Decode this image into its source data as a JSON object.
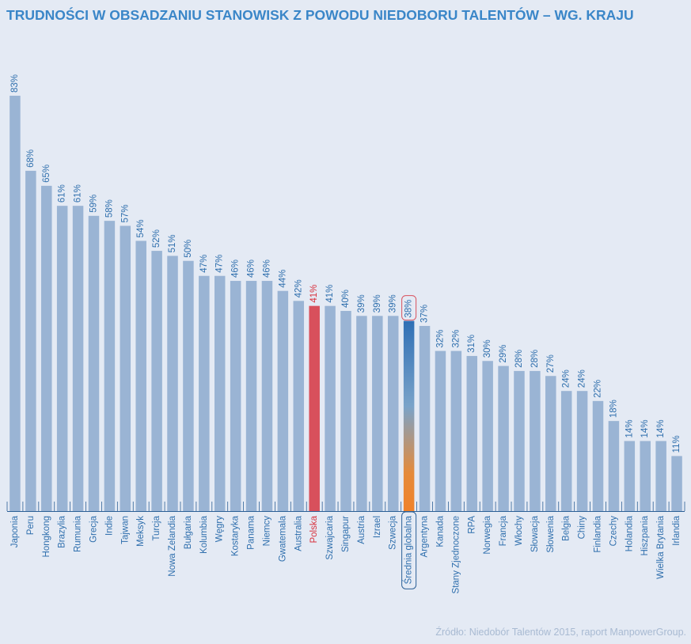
{
  "colors": {
    "bar": "#9ab4d4",
    "highlight": "#d8505c",
    "text": "#2f6fad",
    "highlight_text": "#d8303c",
    "avg_top": "#2f6fb5",
    "avg_bottom": "#f0822a",
    "axis": "#2b5f96"
  },
  "chart_data": {
    "type": "bar",
    "title": "TRUDNOŚCI W OBSADZANIU STANOWISK Z POWODU NIEDOBORU TALENTÓW – WG. KRAJU",
    "source": "Źródło: Niedobór Talentów 2015, raport ManpowerGroup.",
    "categories": [
      "Japonia",
      "Peru",
      "Hongkong",
      "Brazylia",
      "Rumunia",
      "Grecja",
      "Indie",
      "Tajwan",
      "Meksyk",
      "Turcja",
      "Nowa Zelandia",
      "Bułgaria",
      "Kolumbia",
      "Węgry",
      "Kostaryka",
      "Panama",
      "Niemcy",
      "Gwatemala",
      "Australia",
      "Polska",
      "Szwajcaria",
      "Singapur",
      "Austria",
      "Izrael",
      "Szwecja",
      "Średnia globalna",
      "Argentyna",
      "Kanada",
      "Stany Zjednoczone",
      "RPA",
      "Norwegia",
      "Francja",
      "Włochy",
      "Słowacja",
      "Słowenia",
      "Belgia",
      "Chiny",
      "Finlandia",
      "Czechy",
      "Holandia",
      "Hiszpania",
      "Wielka Brytania",
      "Irlandia"
    ],
    "values": [
      83,
      68,
      65,
      61,
      61,
      59,
      58,
      57,
      54,
      52,
      51,
      50,
      47,
      47,
      46,
      46,
      46,
      44,
      42,
      41,
      41,
      40,
      39,
      39,
      39,
      38,
      37,
      32,
      32,
      31,
      30,
      29,
      28,
      28,
      27,
      24,
      24,
      22,
      18,
      14,
      14,
      14,
      11
    ],
    "value_labels": [
      "83%",
      "68%",
      "65%",
      "61%",
      "61%",
      "59%",
      "58%",
      "57%",
      "54%",
      "52%",
      "51%",
      "50%",
      "47%",
      "47%",
      "46%",
      "46%",
      "46%",
      "44%",
      "42%",
      "41%",
      "41%",
      "40%",
      "39%",
      "39%",
      "39%",
      "38%",
      "37%",
      "32%",
      "32%",
      "31%",
      "30%",
      "29%",
      "28%",
      "28%",
      "27%",
      "24%",
      "24%",
      "22%",
      "18%",
      "14%",
      "14%",
      "14%",
      "11%"
    ],
    "highlight": "Polska",
    "average": "Średnia globalna",
    "unit": "%",
    "ylim": [
      0,
      83
    ],
    "grid": false,
    "legend": "none"
  }
}
